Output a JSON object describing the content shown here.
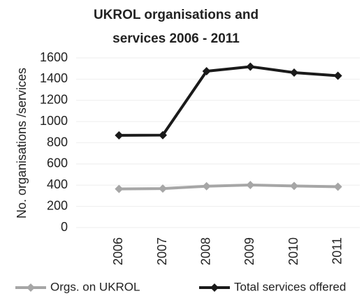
{
  "chart_data": {
    "type": "line",
    "title": [
      "UKROL organisations and",
      "services 2006 - 2011"
    ],
    "ylabel": "No. organisations /services",
    "categories": [
      "2006",
      "2007",
      "2008",
      "2009",
      "2010",
      "2011"
    ],
    "series": [
      {
        "name": "Orgs. on UKROL",
        "color": "#a6a6a6",
        "values": [
          365,
          368,
          390,
          402,
          393,
          385
        ]
      },
      {
        "name": "Total services offered",
        "color": "#1a1a1a",
        "values": [
          870,
          872,
          1475,
          1518,
          1462,
          1432
        ]
      }
    ],
    "ylim": [
      0,
      1600
    ],
    "yticks": [
      0,
      200,
      400,
      600,
      800,
      1000,
      1200,
      1400,
      1600
    ],
    "grid": true
  }
}
